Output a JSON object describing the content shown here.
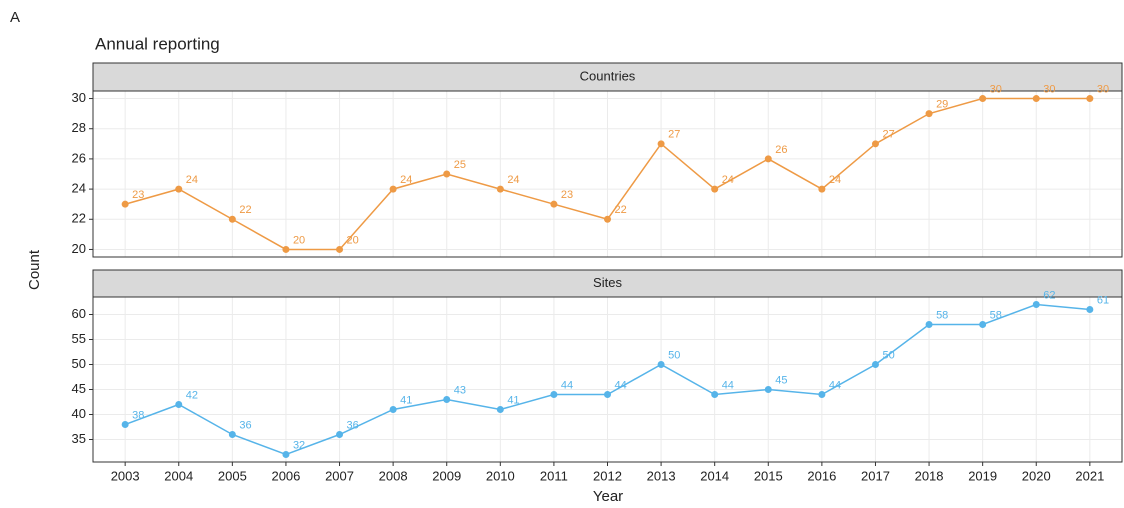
{
  "tag": "A",
  "title": "Annual reporting",
  "ylabel": "Count",
  "xlabel": "Year",
  "chart_data": [
    {
      "type": "line",
      "title": "Countries",
      "color": "#ee9a45",
      "x": [
        2003,
        2004,
        2005,
        2006,
        2007,
        2008,
        2009,
        2010,
        2011,
        2012,
        2013,
        2014,
        2015,
        2016,
        2017,
        2018,
        2019,
        2020,
        2021
      ],
      "values": [
        23,
        24,
        22,
        20,
        20,
        24,
        25,
        24,
        23,
        22,
        27,
        24,
        26,
        24,
        27,
        29,
        30,
        30,
        30
      ],
      "xlim": [
        2002.4,
        2021.6
      ],
      "ylim": [
        19.5,
        30.5
      ],
      "yticks": [
        20,
        22,
        24,
        26,
        28,
        30
      ],
      "grid": true
    },
    {
      "type": "line",
      "title": "Sites",
      "color": "#56b4e9",
      "x": [
        2003,
        2004,
        2005,
        2006,
        2007,
        2008,
        2009,
        2010,
        2011,
        2012,
        2013,
        2014,
        2015,
        2016,
        2017,
        2018,
        2019,
        2020,
        2021
      ],
      "values": [
        38,
        42,
        36,
        32,
        36,
        41,
        43,
        41,
        44,
        44,
        50,
        44,
        45,
        44,
        50,
        58,
        58,
        62,
        61
      ],
      "xlim": [
        2002.4,
        2021.6
      ],
      "ylim": [
        30.5,
        63.5
      ],
      "yticks": [
        35,
        40,
        45,
        50,
        55,
        60
      ],
      "xticks": [
        2003,
        2004,
        2005,
        2006,
        2007,
        2008,
        2009,
        2010,
        2011,
        2012,
        2013,
        2014,
        2015,
        2016,
        2017,
        2018,
        2019,
        2020,
        2021
      ],
      "grid": true
    }
  ]
}
